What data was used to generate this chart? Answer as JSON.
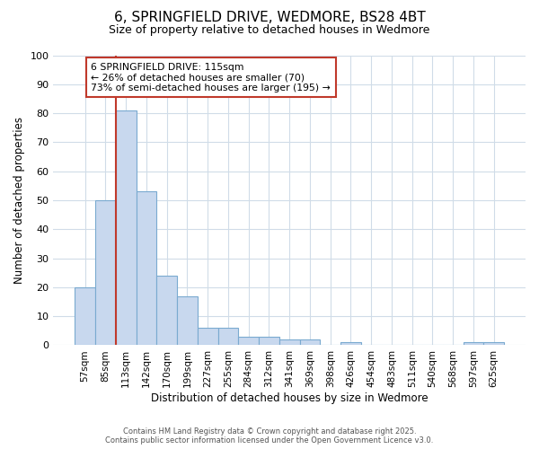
{
  "title": "6, SPRINGFIELD DRIVE, WEDMORE, BS28 4BT",
  "subtitle": "Size of property relative to detached houses in Wedmore",
  "xlabel": "Distribution of detached houses by size in Wedmore",
  "ylabel": "Number of detached properties",
  "bin_labels": [
    "57sqm",
    "85sqm",
    "113sqm",
    "142sqm",
    "170sqm",
    "199sqm",
    "227sqm",
    "255sqm",
    "284sqm",
    "312sqm",
    "341sqm",
    "369sqm",
    "398sqm",
    "426sqm",
    "454sqm",
    "483sqm",
    "511sqm",
    "540sqm",
    "568sqm",
    "597sqm",
    "625sqm"
  ],
  "bar_values": [
    20,
    50,
    81,
    53,
    24,
    17,
    6,
    6,
    3,
    3,
    2,
    2,
    0,
    1,
    0,
    0,
    0,
    0,
    0,
    1,
    1
  ],
  "bar_color": "#c8d8ee",
  "bar_edgecolor": "#7aaad0",
  "property_line_color": "#c0392b",
  "annotation_title": "6 SPRINGFIELD DRIVE: 115sqm",
  "annotation_line2": "← 26% of detached houses are smaller (70)",
  "annotation_line3": "73% of semi-detached houses are larger (195) →",
  "annotation_box_color": "#c0392b",
  "ylim": [
    0,
    100
  ],
  "yticks": [
    0,
    10,
    20,
    30,
    40,
    50,
    60,
    70,
    80,
    90,
    100
  ],
  "footer_line1": "Contains HM Land Registry data © Crown copyright and database right 2025.",
  "footer_line2": "Contains public sector information licensed under the Open Government Licence v3.0.",
  "bg_color": "#ffffff",
  "plot_bg_color": "#ffffff",
  "grid_color": "#d0dce8"
}
